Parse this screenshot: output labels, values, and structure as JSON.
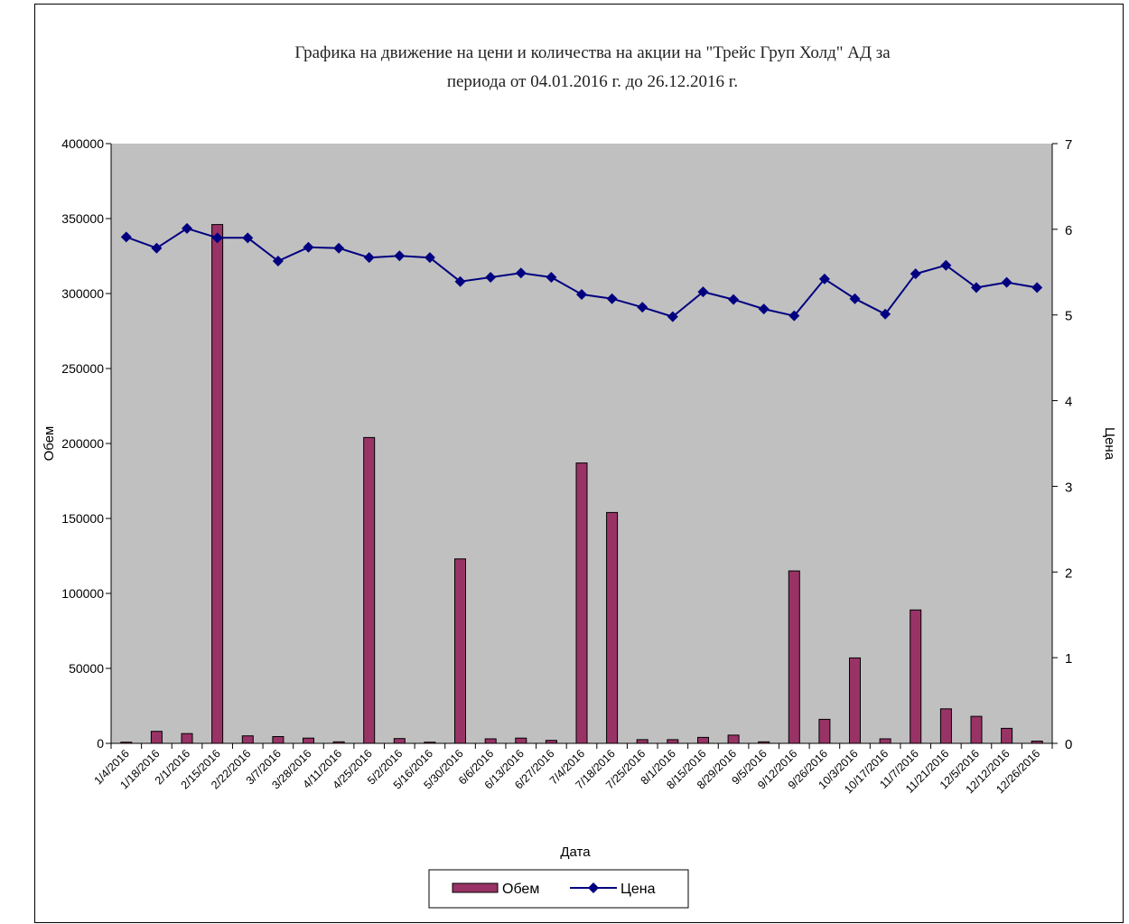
{
  "colors": {
    "plot_bg": "#c0c0c0",
    "bar_fill": "#993366",
    "line": "#000080",
    "frame": "#000000"
  },
  "chart_data": {
    "type": "bar",
    "title_lines": [
      "Графика на движение на цени и количества на акции на \"Трейс Груп Холд\" АД за",
      "периода от 04.01.2016 г.  до 26.12.2016 г."
    ],
    "xlabel": "Дата",
    "ylabel": "Обем",
    "y2label": "Цена",
    "ylim": [
      0,
      400000
    ],
    "y2lim": [
      0,
      7
    ],
    "yticks": [
      "0",
      "50000",
      "100000",
      "150000",
      "200000",
      "250000",
      "300000",
      "350000",
      "400000"
    ],
    "y2ticks": [
      "0",
      "1",
      "2",
      "3",
      "4",
      "5",
      "6",
      "7"
    ],
    "categories": [
      "1/4/2016",
      "1/18/2016",
      "2/1/2016",
      "2/15/2016",
      "2/22/2016",
      "3/7/2016",
      "3/28/2016",
      "4/11/2016",
      "4/25/2016",
      "5/2/2016",
      "5/16/2016",
      "5/30/2016",
      "6/6/2016",
      "6/13/2016",
      "6/27/2016",
      "7/4/2016",
      "7/18/2016",
      "7/25/2016",
      "8/1/2016",
      "8/15/2016",
      "8/29/2016",
      "9/5/2016",
      "9/12/2016",
      "9/26/2016",
      "10/3/2016",
      "10/17/2016",
      "11/7/2016",
      "11/21/2016",
      "12/5/2016",
      "12/12/2016",
      "12/26/2016"
    ],
    "series": [
      {
        "name": "Обем",
        "type": "bar",
        "axis": "left",
        "values": [
          800,
          8000,
          6500,
          346000,
          5000,
          4500,
          3500,
          1000,
          204000,
          3200,
          800,
          123000,
          3000,
          3500,
          2000,
          187000,
          154000,
          2500,
          2500,
          4000,
          5500,
          1000,
          115000,
          16000,
          57000,
          3000,
          89000,
          23000,
          18000,
          10000,
          1500
        ]
      },
      {
        "name": "Цена",
        "type": "line",
        "axis": "right",
        "values": [
          5.91,
          5.78,
          6.01,
          5.9,
          5.9,
          5.63,
          5.79,
          5.78,
          5.67,
          5.69,
          5.67,
          5.39,
          5.44,
          5.49,
          5.44,
          5.24,
          5.19,
          5.09,
          4.98,
          5.27,
          5.18,
          5.07,
          4.99,
          5.42,
          5.19,
          5.01,
          5.48,
          5.58,
          5.32,
          5.38,
          5.32
        ]
      }
    ],
    "legend": [
      "Обем",
      "Цена"
    ],
    "legend_position": "bottom",
    "grid": false
  }
}
